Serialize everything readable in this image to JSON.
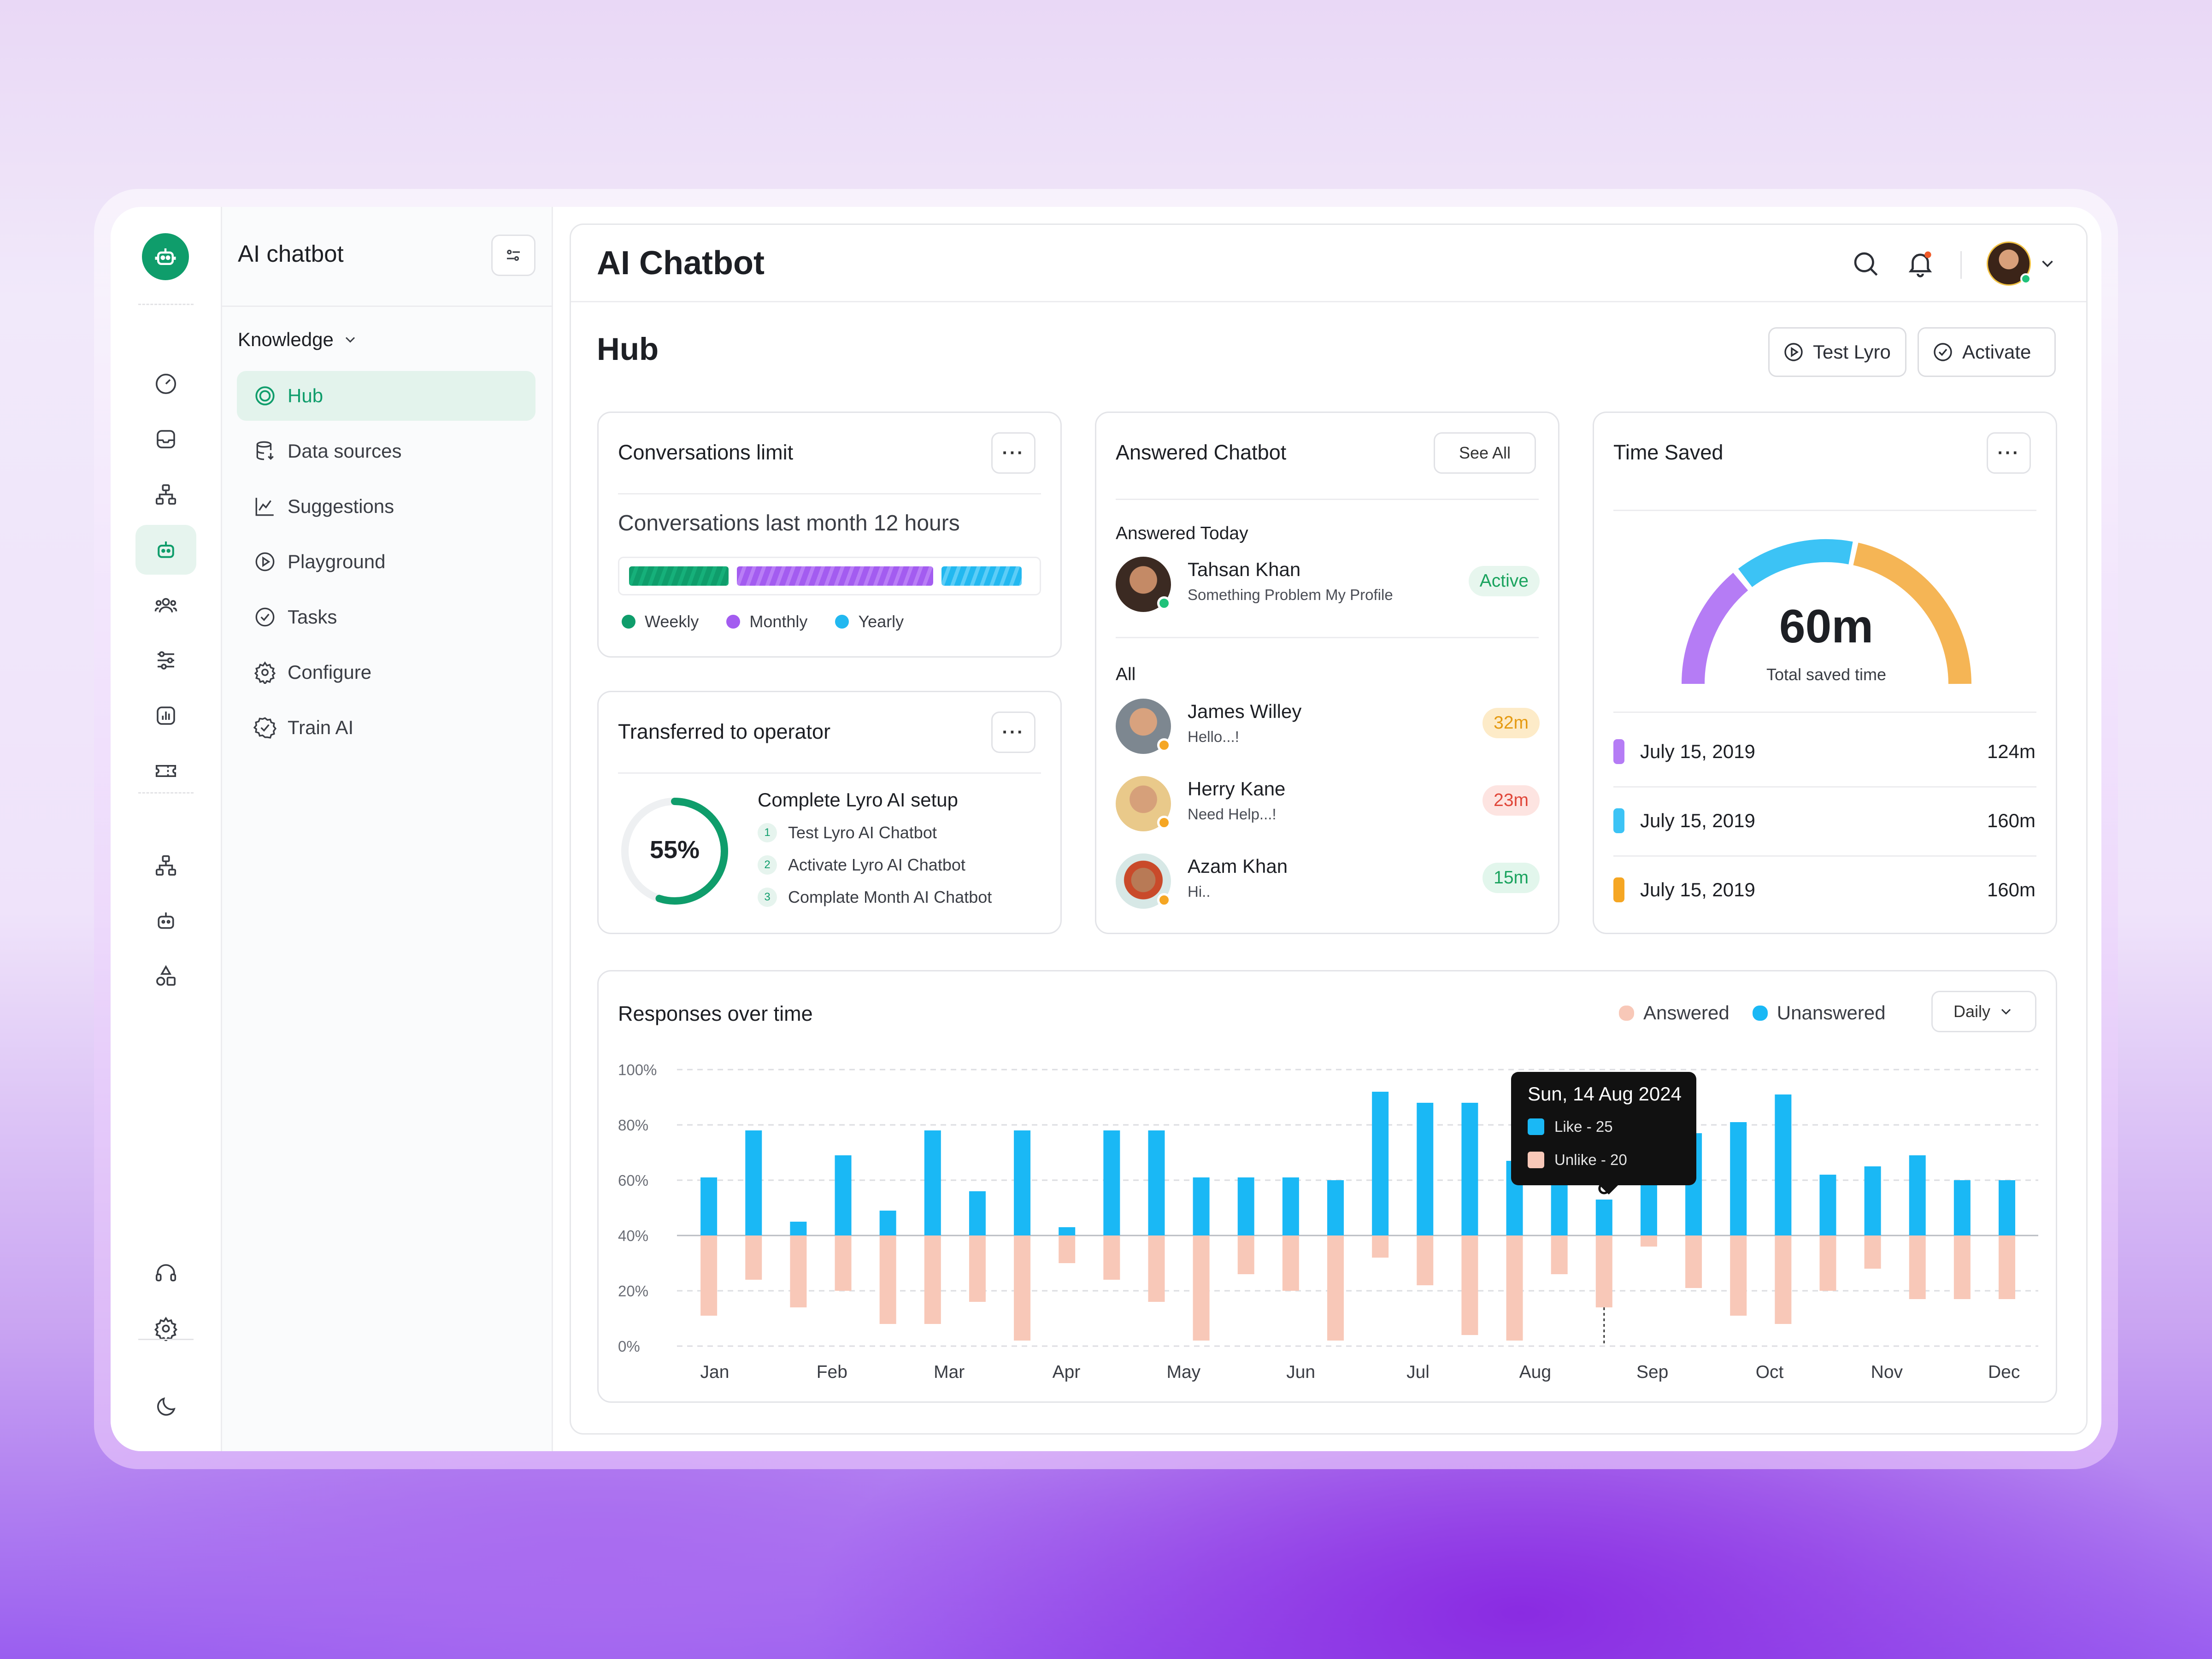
{
  "app": {
    "nav_title": "AI chatbot",
    "page_title": "AI Chatbot",
    "section_title": "Hub"
  },
  "rail": {
    "icons": [
      "dashboard-icon",
      "inbox-icon",
      "hierarchy-icon",
      "bot-icon",
      "users-icon",
      "sliders-icon",
      "chart-icon",
      "ticket-icon",
      "network-icon",
      "bot-outline-icon",
      "shapes-icon",
      "headset-icon",
      "gear-icon",
      "moon-icon"
    ]
  },
  "nav": {
    "group_label": "Knowledge",
    "items": [
      {
        "label": "Hub",
        "icon": "hub-icon",
        "active": true
      },
      {
        "label": "Data sources",
        "icon": "database-icon"
      },
      {
        "label": "Suggestions",
        "icon": "chart-line-icon"
      },
      {
        "label": "Playground",
        "icon": "play-icon"
      },
      {
        "label": "Tasks",
        "icon": "check-circle-icon"
      },
      {
        "label": "Configure",
        "icon": "gear-icon"
      },
      {
        "label": "Train AI",
        "icon": "badge-check-icon"
      }
    ]
  },
  "actions": {
    "test": "Test Lyro",
    "activate": "Activate"
  },
  "conversations": {
    "title": "Conversations limit",
    "subtitle": "Conversations last month 12 hours",
    "legend": [
      {
        "label": "Weekly",
        "color": "#0f9d6b"
      },
      {
        "label": "Monthly",
        "color": "#a35cf0"
      },
      {
        "label": "Yearly",
        "color": "#22b8f0"
      }
    ]
  },
  "transferred": {
    "title": "Transferred to operator",
    "percent_label": "55%",
    "progress": 0.55,
    "setup_title": "Complete Lyro AI setup",
    "steps": [
      {
        "num": "1",
        "label": "Test Lyro AI Chatbot"
      },
      {
        "num": "2",
        "label": "Activate Lyro AI Chatbot"
      },
      {
        "num": "3",
        "label": "Complate  Month AI Chatbot"
      }
    ]
  },
  "answered": {
    "title": "Answered Chatbot",
    "see_all": "See All",
    "today_label": "Answered Today",
    "today": {
      "name": "Tahsan Khan",
      "msg": "Something Problem My Profile",
      "badge": "Active"
    },
    "all_label": "All",
    "people": [
      {
        "name": "James Willey",
        "msg": "Hello...!",
        "badge": "32m"
      },
      {
        "name": "Herry Kane",
        "msg": "Need Help...!",
        "badge": "23m"
      },
      {
        "name": "Azam Khan",
        "msg": "Hi..",
        "badge": "15m"
      }
    ]
  },
  "time_saved": {
    "title": "Time Saved",
    "value": "60m",
    "caption": "Total saved time",
    "rows": [
      {
        "date": "July 15, 2019",
        "value": "124m",
        "color": "#b57cf5"
      },
      {
        "date": "July 15, 2019",
        "value": "160m",
        "color": "#3cc3f5"
      },
      {
        "date": "July 15, 2019",
        "value": "160m",
        "color": "#f5a623"
      }
    ]
  },
  "responses": {
    "title": "Responses over time",
    "legend_answered": "Answered",
    "legend_unanswered": "Unanswered",
    "period": "Daily",
    "tooltip": {
      "date": "Sun, 14 Aug 2024",
      "like": "Like - 25",
      "unlike": "Unlike - 20"
    }
  },
  "chart_data": {
    "type": "bar",
    "title": "Responses over time",
    "ytick_labels": [
      "100%",
      "80%",
      "60%",
      "40%",
      "20%",
      "0%"
    ],
    "months": [
      "Jan",
      "Feb",
      "Mar",
      "Apr",
      "May",
      "Jun",
      "Jul",
      "Aug",
      "Sep",
      "Oct",
      "Nov",
      "Dec"
    ],
    "baseline": 40,
    "ylim": [
      0,
      100
    ],
    "series": [
      {
        "name": "Unanswered",
        "color": "#1ab8f5",
        "values": [
          61,
          78,
          45,
          69,
          49,
          78,
          56,
          78,
          43,
          78,
          78,
          61,
          61,
          61,
          60,
          92,
          88,
          88,
          67,
          78,
          53,
          79,
          77,
          81,
          91,
          62,
          65,
          69,
          60,
          60
        ]
      },
      {
        "name": "Answered",
        "color": "#f8c8b8",
        "values": [
          11,
          24,
          14,
          20,
          8,
          8,
          16,
          2,
          30,
          24,
          16,
          2,
          26,
          20,
          2,
          32,
          22,
          4,
          2,
          26,
          14,
          36,
          21,
          11,
          8,
          20,
          28,
          17,
          17,
          17
        ]
      }
    ]
  }
}
